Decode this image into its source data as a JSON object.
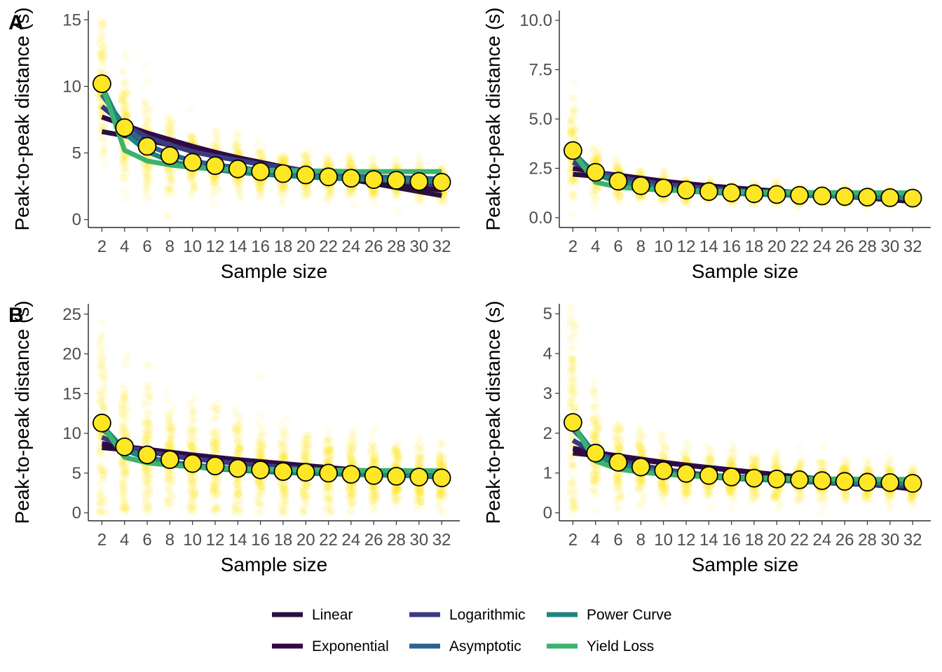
{
  "panel_tags": {
    "a": "A",
    "b": "B"
  },
  "legend": {
    "items": [
      {
        "label": "Linear",
        "color": "#2a0f3e"
      },
      {
        "label": "Exponential",
        "color": "#300a45"
      },
      {
        "label": "Logarithmic",
        "color": "#3a3a80"
      },
      {
        "label": "Asymptotic",
        "color": "#2e6390"
      },
      {
        "label": "Power Curve",
        "color": "#20847e"
      },
      {
        "label": "Yield Loss",
        "color": "#3bb36e"
      }
    ]
  },
  "chart_data": [
    {
      "type": "scatter",
      "id": "top-left",
      "xlabel": "Sample size",
      "ylabel": "Peak-to-peak distance (s)",
      "x": [
        2,
        4,
        6,
        8,
        10,
        12,
        14,
        16,
        18,
        20,
        22,
        24,
        26,
        28,
        30,
        32
      ],
      "x_tick_labels": [
        "2",
        "4",
        "6",
        "8",
        "10",
        "12",
        "14",
        "16",
        "18",
        "20",
        "22",
        "24",
        "26",
        "28",
        "30",
        "32"
      ],
      "xlim": [
        0.8,
        33.6
      ],
      "ylim": [
        -0.6,
        15.7
      ],
      "y_ticks": [
        0,
        5,
        10,
        15
      ],
      "y_tick_labels": [
        "0",
        "5",
        "10",
        "15"
      ],
      "means": [
        10.2,
        6.9,
        5.5,
        4.8,
        4.3,
        4.05,
        3.8,
        3.6,
        3.45,
        3.35,
        3.2,
        3.1,
        3.0,
        2.95,
        2.85,
        2.8
      ],
      "point_color": "#fde725",
      "series": [
        {
          "name": "Linear",
          "values": [
            6.6,
            6.3,
            5.95,
            5.6,
            5.25,
            4.95,
            4.6,
            4.25,
            3.95,
            3.6,
            3.3,
            3.0,
            2.7,
            2.4,
            2.1,
            1.8
          ]
        },
        {
          "name": "Exponential",
          "values": [
            7.7,
            7.1,
            6.5,
            6.0,
            5.5,
            5.05,
            4.65,
            4.3,
            3.95,
            3.65,
            3.35,
            3.1,
            2.85,
            2.6,
            2.4,
            2.2
          ]
        },
        {
          "name": "Logarithmic",
          "values": [
            8.5,
            7.1,
            6.2,
            5.6,
            5.1,
            4.75,
            4.45,
            4.15,
            3.9,
            3.65,
            3.45,
            3.25,
            3.05,
            2.9,
            2.75,
            2.6
          ]
        },
        {
          "name": "Asymptotic",
          "values": [
            9.4,
            7.0,
            5.6,
            4.9,
            4.4,
            4.1,
            3.9,
            3.7,
            3.55,
            3.45,
            3.35,
            3.25,
            3.2,
            3.15,
            3.1,
            3.05
          ]
        },
        {
          "name": "Power Curve",
          "values": [
            10.0,
            6.5,
            5.1,
            4.4,
            4.0,
            3.75,
            3.55,
            3.4,
            3.3,
            3.2,
            3.1,
            3.05,
            3.0,
            2.95,
            2.9,
            2.85
          ]
        },
        {
          "name": "Yield Loss",
          "values": [
            10.1,
            5.2,
            4.4,
            4.1,
            3.9,
            3.8,
            3.75,
            3.7,
            3.7,
            3.65,
            3.65,
            3.6,
            3.6,
            3.6,
            3.6,
            3.6
          ]
        }
      ],
      "spread": {
        "sd": [
          3.6,
          2.6,
          1.9,
          1.6,
          1.4,
          1.25,
          1.15,
          1.05,
          0.95,
          0.9,
          0.85,
          0.8,
          0.75,
          0.72,
          0.7,
          0.68
        ],
        "floor": 0
      }
    },
    {
      "type": "scatter",
      "id": "top-right",
      "xlabel": "Sample size",
      "ylabel": "Peak-to-peak distance (s)",
      "x": [
        2,
        4,
        6,
        8,
        10,
        12,
        14,
        16,
        18,
        20,
        22,
        24,
        26,
        28,
        30,
        32
      ],
      "x_tick_labels": [
        "2",
        "4",
        "6",
        "8",
        "10",
        "12",
        "14",
        "16",
        "18",
        "20",
        "22",
        "24",
        "26",
        "28",
        "30",
        "32"
      ],
      "xlim": [
        0.8,
        33.6
      ],
      "ylim": [
        -0.5,
        10.5
      ],
      "y_ticks": [
        0,
        2.5,
        5,
        7.5,
        10
      ],
      "y_tick_labels": [
        "0.0",
        "2.5",
        "5.0",
        "7.5",
        "10.0"
      ],
      "means": [
        3.4,
        2.3,
        1.85,
        1.62,
        1.5,
        1.4,
        1.32,
        1.26,
        1.21,
        1.17,
        1.13,
        1.1,
        1.07,
        1.04,
        1.01,
        0.99
      ],
      "point_color": "#fde725",
      "series": [
        {
          "name": "Linear",
          "values": [
            2.2,
            2.1,
            2.0,
            1.9,
            1.8,
            1.7,
            1.6,
            1.5,
            1.42,
            1.33,
            1.25,
            1.16,
            1.08,
            0.99,
            0.9,
            0.82
          ]
        },
        {
          "name": "Exponential",
          "values": [
            2.5,
            2.3,
            2.15,
            2.0,
            1.85,
            1.73,
            1.62,
            1.52,
            1.43,
            1.35,
            1.27,
            1.2,
            1.13,
            1.07,
            1.01,
            0.96
          ]
        },
        {
          "name": "Logarithmic",
          "values": [
            2.8,
            2.35,
            2.05,
            1.85,
            1.7,
            1.58,
            1.48,
            1.4,
            1.33,
            1.26,
            1.2,
            1.15,
            1.1,
            1.05,
            1.01,
            0.97
          ]
        },
        {
          "name": "Asymptotic",
          "values": [
            3.1,
            2.3,
            1.9,
            1.68,
            1.54,
            1.45,
            1.38,
            1.33,
            1.29,
            1.26,
            1.23,
            1.21,
            1.19,
            1.17,
            1.16,
            1.15
          ]
        },
        {
          "name": "Power Curve",
          "values": [
            3.3,
            2.2,
            1.8,
            1.57,
            1.44,
            1.35,
            1.28,
            1.23,
            1.19,
            1.15,
            1.12,
            1.1,
            1.08,
            1.06,
            1.04,
            1.02
          ]
        },
        {
          "name": "Yield Loss",
          "values": [
            3.3,
            1.8,
            1.55,
            1.45,
            1.4,
            1.36,
            1.33,
            1.31,
            1.3,
            1.29,
            1.28,
            1.27,
            1.27,
            1.26,
            1.26,
            1.26
          ]
        }
      ],
      "spread": {
        "sd": [
          1.2,
          0.7,
          0.5,
          0.42,
          0.37,
          0.33,
          0.3,
          0.28,
          0.27,
          0.25,
          0.24,
          0.23,
          0.22,
          0.21,
          0.21,
          0.2
        ],
        "floor": 0
      }
    },
    {
      "type": "scatter",
      "id": "bottom-left",
      "xlabel": "Sample size",
      "ylabel": "Peak-to-peak distance (s)",
      "x": [
        2,
        4,
        6,
        8,
        10,
        12,
        14,
        16,
        18,
        20,
        22,
        24,
        26,
        28,
        30,
        32
      ],
      "x_tick_labels": [
        "2",
        "4",
        "6",
        "8",
        "10",
        "12",
        "14",
        "16",
        "18",
        "20",
        "22",
        "24",
        "26",
        "28",
        "30",
        "32"
      ],
      "xlim": [
        0.8,
        33.6
      ],
      "ylim": [
        -1.0,
        26.3
      ],
      "y_ticks": [
        0,
        5,
        10,
        15,
        20,
        25
      ],
      "y_tick_labels": [
        "0",
        "5",
        "10",
        "15",
        "20",
        "25"
      ],
      "means": [
        11.3,
        8.3,
        7.3,
        6.7,
        6.2,
        5.9,
        5.6,
        5.4,
        5.2,
        5.1,
        5.0,
        4.85,
        4.7,
        4.6,
        4.5,
        4.4
      ],
      "point_color": "#fde725",
      "series": [
        {
          "name": "Linear",
          "values": [
            8.2,
            7.95,
            7.7,
            7.45,
            7.2,
            6.95,
            6.7,
            6.45,
            6.2,
            5.95,
            5.7,
            5.45,
            5.2,
            4.95,
            4.7,
            4.45
          ]
        },
        {
          "name": "Exponential",
          "values": [
            8.7,
            8.35,
            8.0,
            7.65,
            7.3,
            7.0,
            6.7,
            6.4,
            6.15,
            5.9,
            5.65,
            5.4,
            5.2,
            4.98,
            4.78,
            4.58
          ]
        },
        {
          "name": "Logarithmic",
          "values": [
            9.5,
            8.4,
            7.7,
            7.2,
            6.8,
            6.5,
            6.2,
            5.95,
            5.75,
            5.55,
            5.35,
            5.2,
            5.05,
            4.9,
            4.75,
            4.65
          ]
        },
        {
          "name": "Asymptotic",
          "values": [
            10.6,
            8.1,
            7.0,
            6.4,
            6.0,
            5.75,
            5.55,
            5.4,
            5.3,
            5.2,
            5.12,
            5.06,
            5.0,
            4.95,
            4.9,
            4.87
          ]
        },
        {
          "name": "Power Curve",
          "values": [
            11.0,
            7.9,
            6.8,
            6.2,
            5.8,
            5.55,
            5.35,
            5.2,
            5.08,
            4.98,
            4.9,
            4.83,
            4.77,
            4.71,
            4.66,
            4.62
          ]
        },
        {
          "name": "Yield Loss",
          "values": [
            11.1,
            7.0,
            6.3,
            6.0,
            5.8,
            5.65,
            5.55,
            5.5,
            5.45,
            5.4,
            5.38,
            5.35,
            5.33,
            5.31,
            5.3,
            5.29
          ]
        }
      ],
      "spread": {
        "sd": [
          7.5,
          5.8,
          5.0,
          4.4,
          4.0,
          3.7,
          3.4,
          3.2,
          3.0,
          2.85,
          2.7,
          2.55,
          2.4,
          2.3,
          2.2,
          2.1
        ],
        "floor": 0
      }
    },
    {
      "type": "scatter",
      "id": "bottom-right",
      "xlabel": "Sample size",
      "ylabel": "Peak-to-peak distance (s)",
      "x": [
        2,
        4,
        6,
        8,
        10,
        12,
        14,
        16,
        18,
        20,
        22,
        24,
        26,
        28,
        30,
        32
      ],
      "x_tick_labels": [
        "2",
        "4",
        "6",
        "8",
        "10",
        "12",
        "14",
        "16",
        "18",
        "20",
        "22",
        "24",
        "26",
        "28",
        "30",
        "32"
      ],
      "xlim": [
        0.8,
        33.6
      ],
      "ylim": [
        -0.2,
        5.25
      ],
      "y_ticks": [
        0,
        1,
        2,
        3,
        4,
        5
      ],
      "y_tick_labels": [
        "0",
        "1",
        "2",
        "3",
        "4",
        "5"
      ],
      "means": [
        2.27,
        1.5,
        1.27,
        1.15,
        1.06,
        0.99,
        0.94,
        0.9,
        0.87,
        0.85,
        0.83,
        0.81,
        0.79,
        0.77,
        0.76,
        0.74
      ],
      "point_color": "#fde725",
      "series": [
        {
          "name": "Linear",
          "values": [
            1.5,
            1.44,
            1.38,
            1.32,
            1.26,
            1.2,
            1.14,
            1.08,
            1.02,
            0.96,
            0.9,
            0.84,
            0.78,
            0.72,
            0.66,
            0.6
          ]
        },
        {
          "name": "Exponential",
          "values": [
            1.62,
            1.52,
            1.43,
            1.35,
            1.27,
            1.2,
            1.13,
            1.07,
            1.01,
            0.95,
            0.9,
            0.85,
            0.8,
            0.76,
            0.72,
            0.68
          ]
        },
        {
          "name": "Logarithmic",
          "values": [
            1.82,
            1.5,
            1.32,
            1.19,
            1.09,
            1.01,
            0.95,
            0.9,
            0.86,
            0.82,
            0.79,
            0.76,
            0.73,
            0.71,
            0.69,
            0.67
          ]
        },
        {
          "name": "Asymptotic",
          "values": [
            2.1,
            1.5,
            1.25,
            1.12,
            1.04,
            0.98,
            0.94,
            0.91,
            0.89,
            0.87,
            0.85,
            0.84,
            0.83,
            0.82,
            0.81,
            0.8
          ]
        },
        {
          "name": "Power Curve",
          "values": [
            2.2,
            1.45,
            1.2,
            1.08,
            1.0,
            0.94,
            0.9,
            0.86,
            0.84,
            0.82,
            0.8,
            0.78,
            0.77,
            0.76,
            0.75,
            0.74
          ]
        },
        {
          "name": "Yield Loss",
          "values": [
            2.22,
            1.3,
            1.1,
            1.02,
            0.97,
            0.93,
            0.91,
            0.89,
            0.88,
            0.87,
            0.86,
            0.85,
            0.85,
            0.84,
            0.84,
            0.84
          ]
        }
      ],
      "spread": {
        "sd": [
          1.6,
          0.75,
          0.55,
          0.47,
          0.42,
          0.38,
          0.35,
          0.33,
          0.31,
          0.3,
          0.29,
          0.28,
          0.27,
          0.27,
          0.26,
          0.26
        ],
        "floor": 0
      }
    }
  ]
}
